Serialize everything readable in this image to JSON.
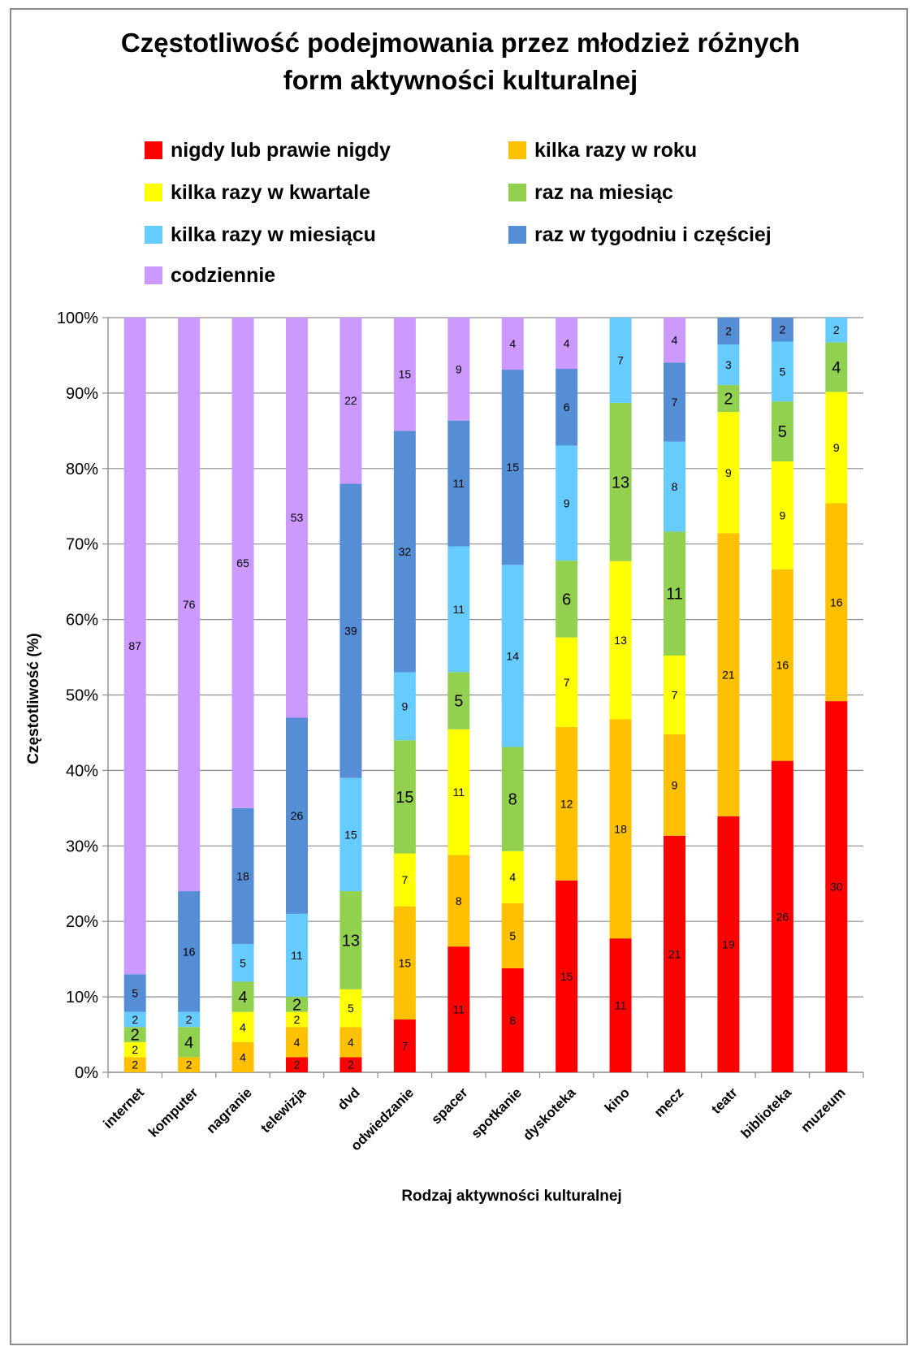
{
  "chart_data": {
    "type": "bar",
    "stacked": true,
    "title": "Częstotliwość podejmowania przez młodzież różnych form aktywności kulturalnej",
    "title_lines": [
      "Częstotliwość podejmowania przez młodzież różnych",
      "form aktywności kulturalnej"
    ],
    "xlabel": "Rodzaj aktywności kulturalnej",
    "ylabel": "Częstotliwość (%)",
    "ylim": [
      0,
      100
    ],
    "yticks": [
      "0%",
      "10%",
      "20%",
      "30%",
      "40%",
      "50%",
      "60%",
      "70%",
      "80%",
      "90%",
      "100%"
    ],
    "grid": true,
    "legend_position": "top",
    "categories": [
      "internet",
      "komputer",
      "nagranie",
      "telewizja",
      "dvd",
      "odwiedzanie",
      "spacer",
      "spotkanie",
      "dyskoteka",
      "kino",
      "mecz",
      "teatr",
      "biblioteka",
      "muzeum"
    ],
    "series": [
      {
        "name": "nigdy lub prawie nigdy",
        "color": "#ff0000",
        "values": [
          0,
          0,
          0,
          2,
          2,
          7,
          11,
          8,
          15,
          11,
          21,
          19,
          26,
          30
        ]
      },
      {
        "name": "kilka razy w roku",
        "color": "#ffc000",
        "values": [
          2,
          2,
          4,
          4,
          4,
          15,
          8,
          5,
          12,
          18,
          9,
          21,
          16,
          16
        ]
      },
      {
        "name": "kilka razy w kwartale",
        "color": "#ffff00",
        "values": [
          2,
          0,
          4,
          2,
          5,
          7,
          11,
          4,
          7,
          13,
          7,
          9,
          9,
          9
        ]
      },
      {
        "name": "raz na miesiąc",
        "color": "#92d050",
        "values": [
          2,
          4,
          4,
          2,
          13,
          15,
          5,
          8,
          6,
          13,
          11,
          2,
          5,
          4
        ]
      },
      {
        "name": "kilka razy w miesiącu",
        "color": "#66ccff",
        "values": [
          2,
          2,
          5,
          11,
          15,
          9,
          11,
          14,
          9,
          7,
          8,
          3,
          5,
          2
        ]
      },
      {
        "name": "raz w tygodniu i częściej",
        "color": "#558ed5",
        "values": [
          5,
          16,
          18,
          26,
          39,
          32,
          11,
          15,
          6,
          0,
          7,
          2,
          2,
          0
        ]
      },
      {
        "name": "codziennie",
        "color": "#cc99ff",
        "values": [
          87,
          76,
          65,
          53,
          22,
          15,
          9,
          4,
          4,
          0,
          4,
          0,
          0,
          0
        ]
      }
    ]
  }
}
